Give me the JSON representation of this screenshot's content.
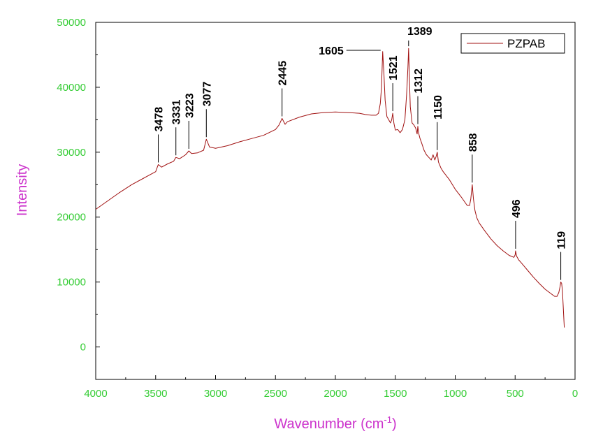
{
  "chart_data": {
    "type": "line",
    "xlabel": "Wavenumber (cm",
    "xlabel_sup": "-1",
    "xlabel_end": ")",
    "ylabel": "Intensity",
    "xlim": [
      4000,
      0
    ],
    "ylim": [
      -5000,
      50000
    ],
    "x_ticks": [
      4000,
      3500,
      3000,
      2500,
      2000,
      1500,
      1000,
      500,
      0
    ],
    "x_tick_labels": [
      "4000",
      "3500",
      "3000",
      "2500",
      "2000",
      "1500",
      "1000",
      "500",
      "0"
    ],
    "y_ticks": [
      0,
      10000,
      20000,
      30000,
      40000,
      50000
    ],
    "y_tick_labels": [
      "0",
      "10000",
      "20000",
      "30000",
      "40000",
      "50000"
    ],
    "grid": false,
    "legend_position": "top-right",
    "colors": {
      "series": "#a01010",
      "axis_text": "#33cc33",
      "axis_title_x": "#cc33cc",
      "axis_title_y": "#cc33cc"
    },
    "series": [
      {
        "name": "PZPAB",
        "x": [
          4000,
          3900,
          3800,
          3700,
          3600,
          3500,
          3478,
          3450,
          3400,
          3350,
          3331,
          3300,
          3250,
          3223,
          3200,
          3150,
          3100,
          3077,
          3050,
          3000,
          2950,
          2900,
          2800,
          2700,
          2600,
          2500,
          2470,
          2445,
          2420,
          2400,
          2300,
          2200,
          2100,
          2000,
          1900,
          1800,
          1750,
          1700,
          1660,
          1640,
          1625,
          1615,
          1605,
          1595,
          1585,
          1570,
          1555,
          1540,
          1530,
          1521,
          1512,
          1500,
          1480,
          1460,
          1440,
          1420,
          1405,
          1395,
          1389,
          1383,
          1375,
          1360,
          1345,
          1330,
          1318,
          1312,
          1306,
          1295,
          1280,
          1260,
          1240,
          1220,
          1200,
          1185,
          1170,
          1160,
          1150,
          1140,
          1120,
          1100,
          1050,
          1000,
          950,
          900,
          880,
          870,
          858,
          848,
          835,
          820,
          800,
          750,
          700,
          650,
          600,
          550,
          510,
          500,
          496,
          488,
          470,
          450,
          400,
          350,
          300,
          250,
          200,
          170,
          150,
          135,
          125,
          119,
          112,
          105,
          98,
          90
        ],
        "y": [
          21200,
          22500,
          23800,
          25000,
          26000,
          27000,
          28100,
          27700,
          28200,
          28600,
          29200,
          29000,
          29600,
          30200,
          29800,
          29900,
          30300,
          32000,
          30800,
          30600,
          30800,
          31000,
          31600,
          32100,
          32600,
          33500,
          34200,
          35200,
          34300,
          34700,
          35400,
          35900,
          36100,
          36200,
          36100,
          36000,
          35800,
          35700,
          35700,
          36000,
          37500,
          40000,
          45500,
          42000,
          38000,
          35500,
          35000,
          34500,
          35000,
          36000,
          34500,
          33400,
          33500,
          33000,
          33500,
          35000,
          39000,
          43000,
          46000,
          42000,
          37000,
          34500,
          34200,
          33700,
          32800,
          34000,
          33000,
          32200,
          31400,
          30300,
          29600,
          29200,
          28800,
          29600,
          28800,
          29300,
          30000,
          28500,
          27600,
          27000,
          25800,
          24300,
          23100,
          21800,
          21800,
          22800,
          25000,
          22800,
          21000,
          19900,
          19100,
          17800,
          16600,
          15600,
          14800,
          14100,
          13800,
          14200,
          14800,
          14000,
          13400,
          13000,
          11900,
          10800,
          9800,
          8900,
          8200,
          7800,
          7800,
          8400,
          9300,
          10000,
          9800,
          8600,
          6000,
          3000
        ]
      }
    ],
    "annotations": [
      {
        "label": "3478",
        "x": 3478,
        "peak_y": 28100,
        "orient": "vertical"
      },
      {
        "label": "3331",
        "x": 3331,
        "peak_y": 29200,
        "orient": "vertical"
      },
      {
        "label": "3223",
        "x": 3223,
        "peak_y": 30200,
        "orient": "vertical"
      },
      {
        "label": "3077",
        "x": 3077,
        "peak_y": 32000,
        "orient": "vertical"
      },
      {
        "label": "2445",
        "x": 2445,
        "peak_y": 35200,
        "orient": "vertical"
      },
      {
        "label": "1605",
        "x": 1605,
        "peak_y": 45500,
        "orient": "horizontal"
      },
      {
        "label": "1521",
        "x": 1521,
        "peak_y": 36000,
        "orient": "vertical"
      },
      {
        "label": "1389",
        "x": 1389,
        "peak_y": 46000,
        "orient": "horizontal-top"
      },
      {
        "label": "1312",
        "x": 1312,
        "peak_y": 34000,
        "orient": "vertical-small"
      },
      {
        "label": "1150",
        "x": 1150,
        "peak_y": 30000,
        "orient": "vertical"
      },
      {
        "label": "858",
        "x": 858,
        "peak_y": 25000,
        "orient": "vertical"
      },
      {
        "label": "496",
        "x": 496,
        "peak_y": 14800,
        "orient": "vertical"
      },
      {
        "label": "119",
        "x": 119,
        "peak_y": 10000,
        "orient": "vertical"
      }
    ]
  }
}
